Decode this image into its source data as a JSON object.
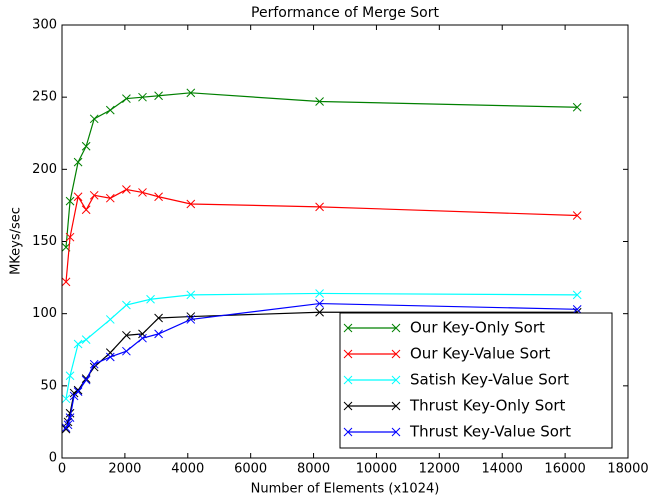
{
  "chart_data": {
    "type": "line",
    "title": "Performance of Merge Sort",
    "x_label": "Number of Elements (x1024)",
    "y_label": "MKeys/sec",
    "xlim": [
      0,
      18000
    ],
    "ylim": [
      0,
      300
    ],
    "xticks": [
      0,
      2000,
      4000,
      6000,
      8000,
      10000,
      12000,
      14000,
      16000,
      18000
    ],
    "yticks": [
      0,
      50,
      100,
      150,
      200,
      250,
      300
    ],
    "legend": "lower right",
    "series": [
      {
        "name": "Our Key-Only Sort",
        "color": "#008000",
        "x": [
          128,
          256,
          512,
          768,
          1024,
          1536,
          2048,
          2560,
          3072,
          4096,
          8192,
          16384
        ],
        "values": [
          146,
          178,
          205,
          216,
          235,
          241,
          249,
          250,
          251,
          253,
          247,
          243
        ]
      },
      {
        "name": "Our Key-Value Sort",
        "color": "#ff0000",
        "x": [
          128,
          256,
          512,
          768,
          1024,
          1536,
          2048,
          2560,
          3072,
          4096,
          8192,
          16384
        ],
        "values": [
          122,
          153,
          181,
          172,
          182,
          180,
          186,
          184,
          181,
          176,
          174,
          168
        ]
      },
      {
        "name": "Satish Key-Value Sort",
        "color": "#00ffff",
        "x": [
          128,
          256,
          512,
          768,
          1536,
          2048,
          2816,
          4096,
          8192,
          16384
        ],
        "values": [
          41,
          57,
          79,
          82,
          96,
          106,
          110,
          113,
          114,
          113
        ]
      },
      {
        "name": "Thrust Key-Only Sort",
        "color": "#000000",
        "x": [
          128,
          192,
          256,
          384,
          512,
          768,
          1024,
          1536,
          2048,
          2560,
          3072,
          4096,
          8192,
          16384
        ],
        "values": [
          20,
          25,
          31,
          45,
          47,
          55,
          63,
          73,
          85,
          86,
          97,
          98,
          101,
          101
        ]
      },
      {
        "name": "Thrust Key-Value Sort",
        "color": "#0000ff",
        "x": [
          128,
          192,
          256,
          384,
          512,
          768,
          1024,
          1536,
          2048,
          2560,
          3072,
          4096,
          8192,
          16384
        ],
        "values": [
          21,
          23,
          28,
          43,
          46,
          54,
          65,
          70,
          74,
          83,
          86,
          96,
          107,
          103
        ]
      }
    ]
  }
}
